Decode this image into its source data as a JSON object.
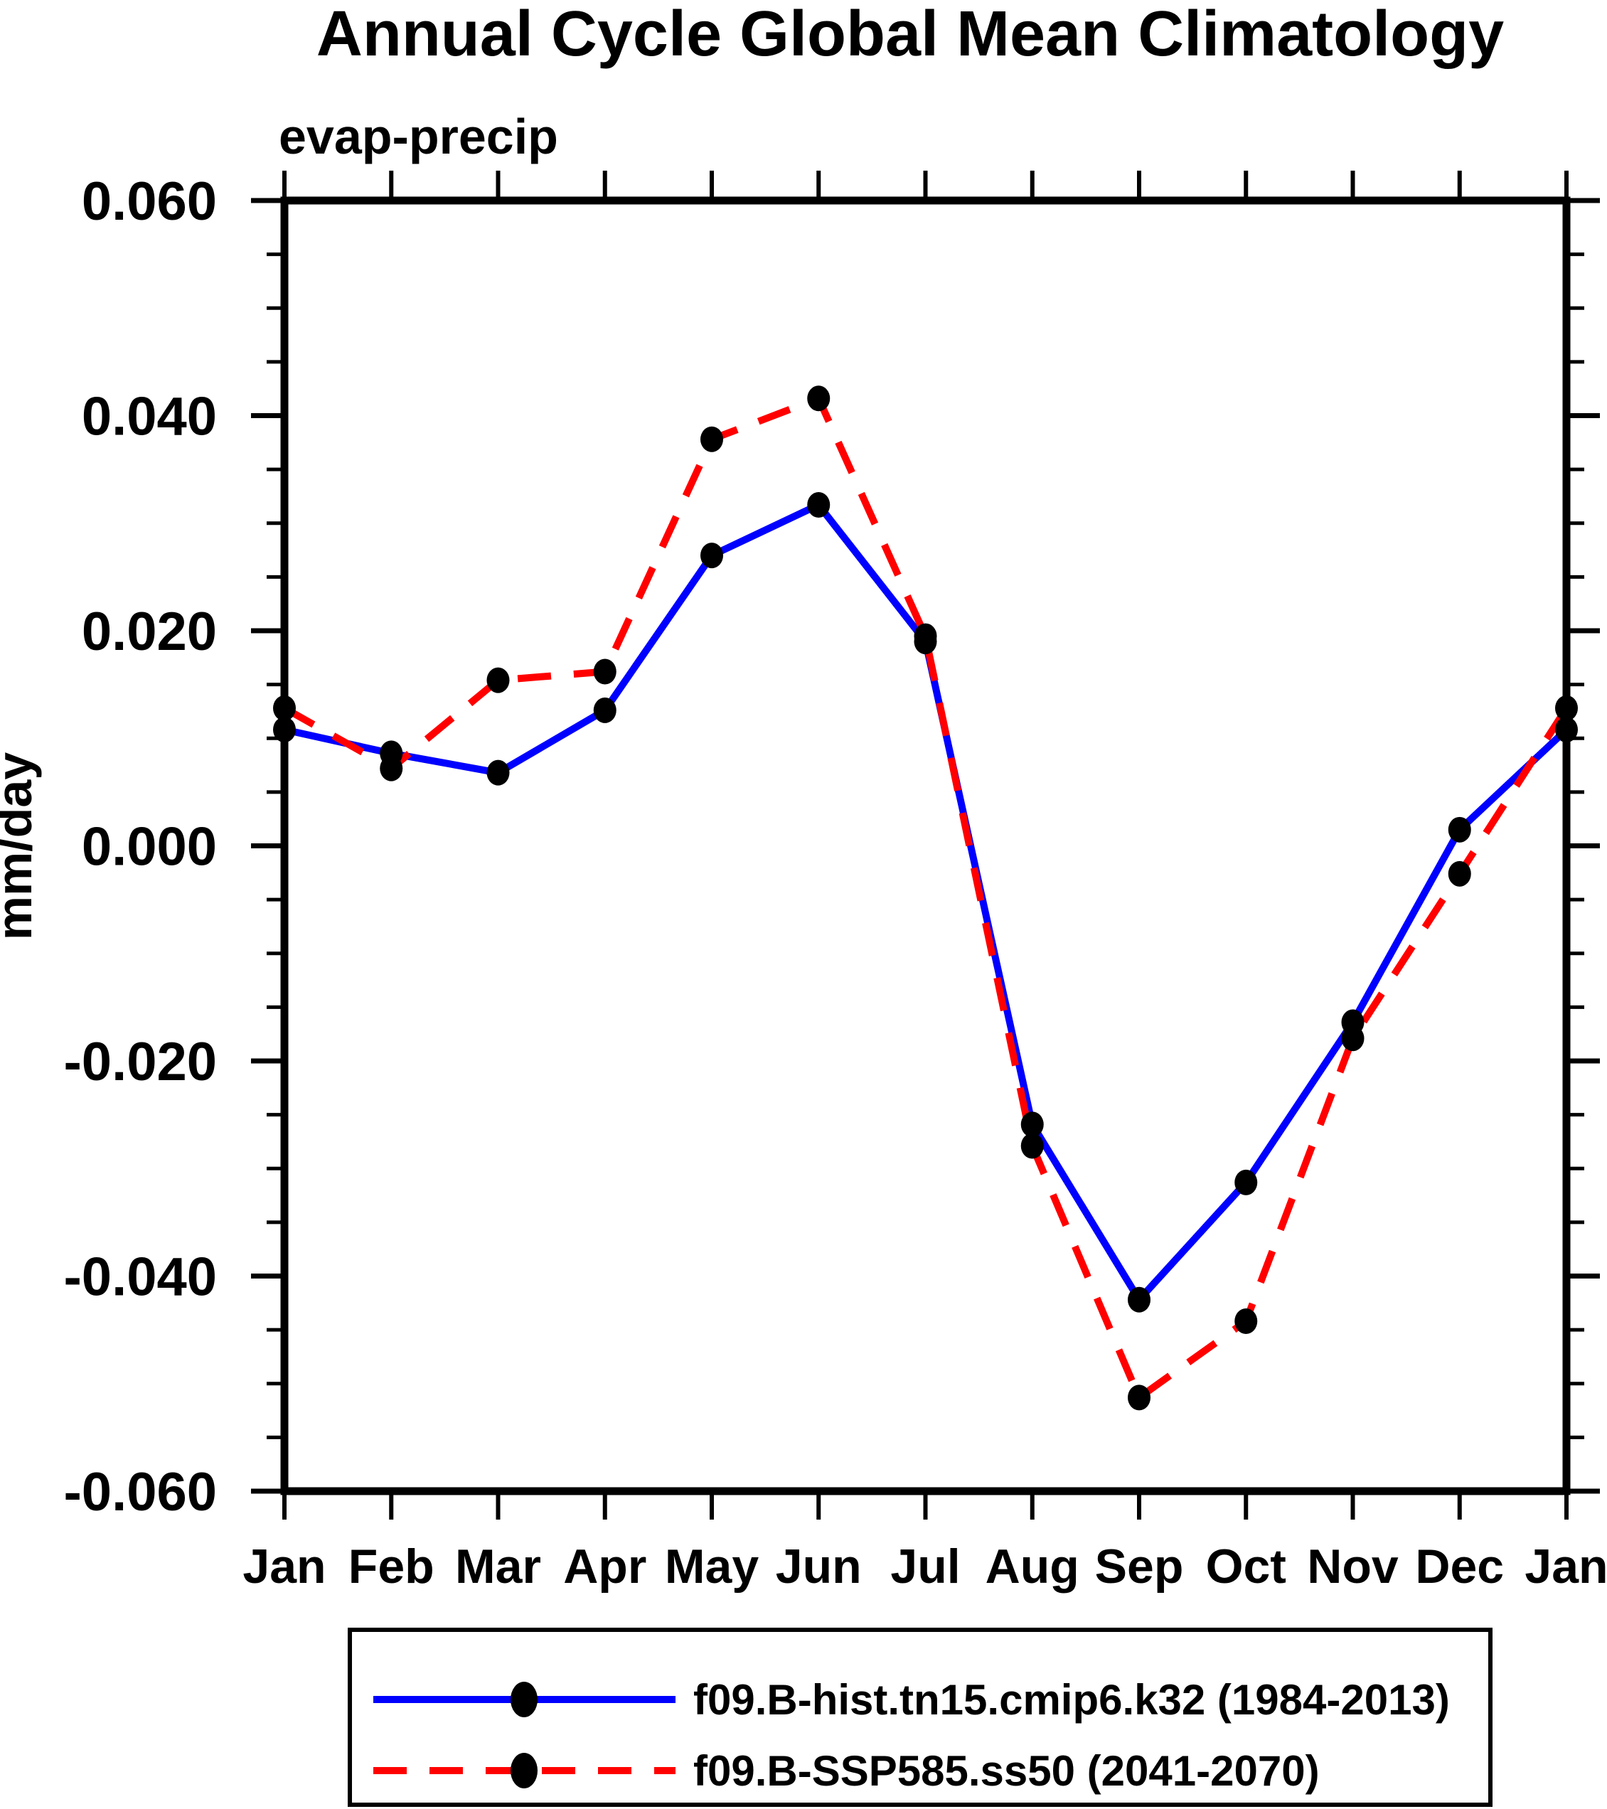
{
  "title": "Annual Cycle Global Mean Climatology",
  "subtitle": "evap-precip",
  "ylabel": "mm/day",
  "colors": {
    "series1": "#0000ff",
    "series2": "#ff0000",
    "marker": "#000000",
    "axis": "#000000",
    "background": "#ffffff"
  },
  "chart_data": {
    "type": "line",
    "categories": [
      "Jan",
      "Feb",
      "Mar",
      "Apr",
      "May",
      "Jun",
      "Jul",
      "Aug",
      "Sep",
      "Oct",
      "Nov",
      "Dec",
      "Jan"
    ],
    "xlabel": "",
    "ylabel": "mm/day",
    "ylim": [
      -0.06,
      0.06
    ],
    "y_major_ticks": [
      0.06,
      0.04,
      0.02,
      0.0,
      -0.02,
      -0.04,
      -0.06
    ],
    "y_tick_labels": [
      "0.060",
      "0.040",
      "0.020",
      "0.000",
      "-0.020",
      "-0.040",
      "-0.060"
    ],
    "y_minor_step": 0.005,
    "grid": false,
    "legend_position": "bottom",
    "series": [
      {
        "name": "f09.B-hist.tn15.cmip6.k32 (1984-2013)",
        "color": "#0000ff",
        "style": "solid",
        "marker": "black-dot",
        "values": [
          0.0108,
          0.0086,
          0.0068,
          0.0126,
          0.027,
          0.0317,
          0.019,
          -0.0259,
          -0.0422,
          -0.0313,
          -0.0164,
          0.0015,
          0.0108
        ]
      },
      {
        "name": "f09.B-SSP585.ss50 (2041-2070)",
        "color": "#ff0000",
        "style": "dashed",
        "marker": "black-dot",
        "values": [
          0.0128,
          0.0072,
          0.0154,
          0.0162,
          0.0378,
          0.0416,
          0.0195,
          -0.0279,
          -0.0513,
          -0.0442,
          -0.0179,
          -0.0026,
          0.0128
        ]
      }
    ]
  }
}
